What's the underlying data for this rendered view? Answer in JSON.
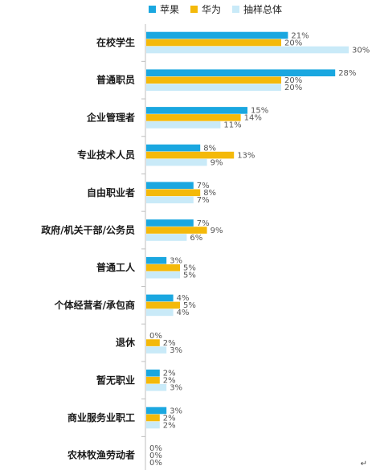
{
  "chart_data": {
    "type": "bar",
    "orientation": "horizontal",
    "categories": [
      "在校学生",
      "普通职员",
      "企业管理者",
      "专业技术人员",
      "自由职业者",
      "政府/机关干部/公务员",
      "普通工人",
      "个体经营者/承包商",
      "退休",
      "暂无职业",
      "商业服务业职工",
      "农林牧渔劳动者"
    ],
    "series": [
      {
        "name": "苹果",
        "color": "#1aa7e0",
        "values": [
          21,
          28,
          15,
          8,
          7,
          7,
          3,
          4,
          0,
          2,
          3,
          0
        ]
      },
      {
        "name": "华为",
        "color": "#f4b90a",
        "values": [
          20,
          20,
          14,
          13,
          8,
          9,
          5,
          5,
          2,
          2,
          2,
          0
        ]
      },
      {
        "name": "抽样总体",
        "color": "#c9eaf8",
        "values": [
          30,
          20,
          11,
          9,
          7,
          6,
          5,
          4,
          3,
          3,
          2,
          0
        ]
      }
    ],
    "value_suffix": "%",
    "xlim": [
      0,
      30
    ],
    "grid": false,
    "legend_position": "top"
  },
  "legend": {
    "items": [
      {
        "label": "苹果",
        "color": "#1aa7e0"
      },
      {
        "label": "华为",
        "color": "#f4b90a"
      },
      {
        "label": "抽样总体",
        "color": "#c9eaf8"
      }
    ]
  },
  "eol_mark": "↵"
}
